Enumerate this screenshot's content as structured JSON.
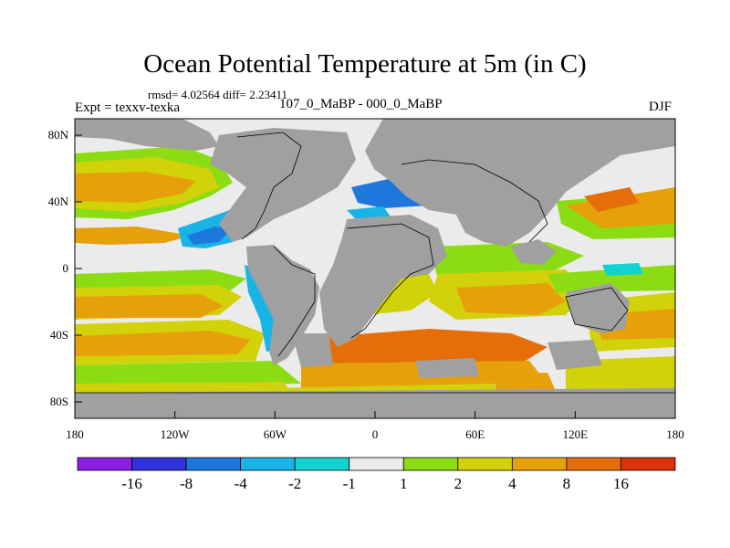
{
  "title": "Ocean Potential Temperature at 5m (in C)",
  "stats_text": "rmsd= 4.02564 diff= 2.23411",
  "experiment_label": "Expt = texxv-texka",
  "experiment_diff": "107_0_MaBP - 000_0_MaBP",
  "season": "DJF",
  "chart_data": {
    "type": "heatmap",
    "title": "Ocean Potential Temperature at 5m (in C)",
    "x_ticks": [
      "180",
      "120W",
      "60W",
      "0",
      "60E",
      "120E",
      "180"
    ],
    "y_ticks": [
      "80N",
      "40N",
      "0",
      "40S",
      "80S"
    ],
    "xlim": [
      -180,
      180
    ],
    "ylim": [
      -90,
      90
    ],
    "colorbar": {
      "labels": [
        "-16",
        "-8",
        "-4",
        "-2",
        "-1",
        "1",
        "2",
        "4",
        "8",
        "16"
      ],
      "colors": [
        "#8c1ee6",
        "#3232dc",
        "#1e78dc",
        "#19b4e6",
        "#14d2d2",
        "#ebebeb",
        "#8cdc14",
        "#d2d20a",
        "#e6a00a",
        "#e66e0a",
        "#dc320a"
      ]
    },
    "land_color": "#a0a0a0"
  }
}
